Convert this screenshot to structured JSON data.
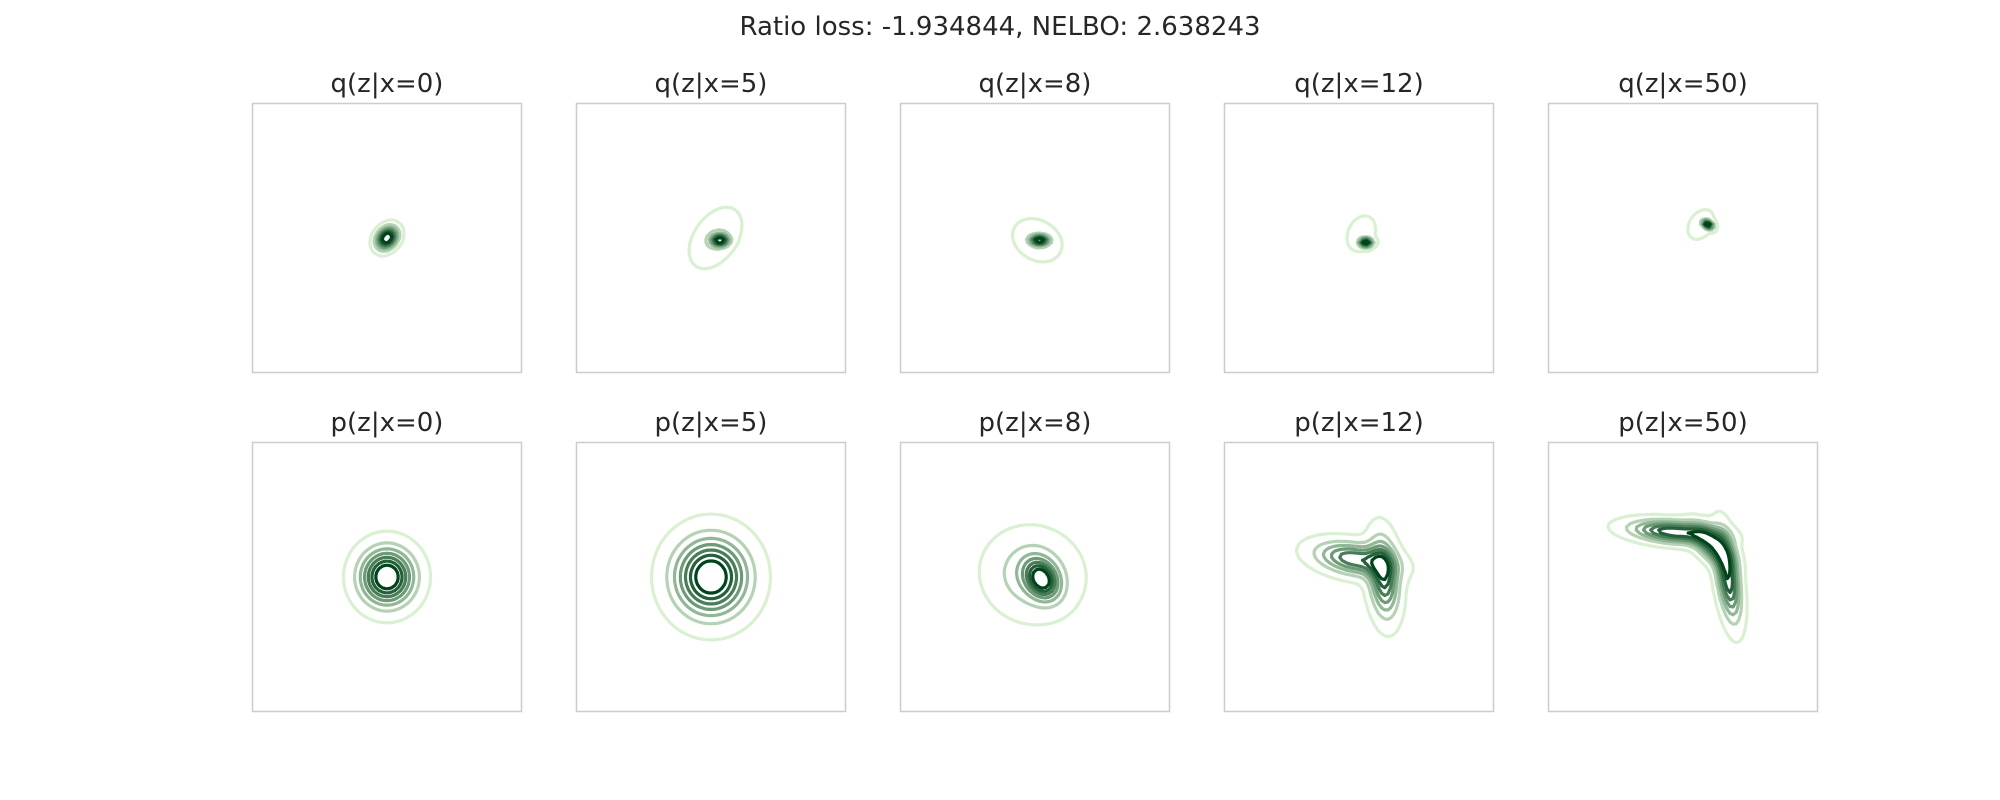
{
  "figure": {
    "title": "Ratio loss: -1.934844, NELBO: 2.638243"
  },
  "colors": {
    "frame": "#cccccc",
    "contour_light": "#d9f0d3",
    "contour_dark": "#00441b",
    "colormap": "Greens"
  },
  "chart_data": [
    {
      "type": "contour",
      "title": "q(z|x=0)",
      "row": "q",
      "x_condition": 0,
      "components": [
        {
          "mean": [
            0.0,
            0.0
          ],
          "std": [
            0.13,
            0.17
          ],
          "rotation_deg": -40,
          "weight": 1.0
        }
      ],
      "levels": 7,
      "grid": false
    },
    {
      "type": "contour",
      "title": "q(z|x=5)",
      "row": "q",
      "x_condition": 5,
      "components": [
        {
          "mean": [
            0.1,
            0.0
          ],
          "std": [
            0.28,
            0.45
          ],
          "rotation_deg": -35,
          "weight": 1.0
        },
        {
          "mean": [
            0.2,
            -0.05
          ],
          "std": [
            0.12,
            0.08
          ],
          "rotation_deg": 0,
          "weight": 0.4
        }
      ],
      "levels": 7,
      "grid": false
    },
    {
      "type": "contour",
      "title": "q(z|x=8)",
      "row": "q",
      "x_condition": 8,
      "components": [
        {
          "mean": [
            0.05,
            -0.05
          ],
          "std": [
            0.42,
            0.32
          ],
          "rotation_deg": -30,
          "weight": 1.0
        },
        {
          "mean": [
            0.1,
            -0.05
          ],
          "std": [
            0.13,
            0.07
          ],
          "rotation_deg": 0,
          "weight": 0.6
        }
      ],
      "levels": 7,
      "grid": false
    },
    {
      "type": "contour",
      "title": "q(z|x=12)",
      "row": "q",
      "x_condition": 12,
      "components": [
        {
          "mean": [
            0.05,
            0.1
          ],
          "std": [
            0.32,
            0.45
          ],
          "rotation_deg": -25,
          "weight": 1.0
        },
        {
          "mean": [
            0.15,
            -0.1
          ],
          "std": [
            0.09,
            0.06
          ],
          "rotation_deg": 0,
          "weight": 0.6
        }
      ],
      "levels": 7,
      "grid": false
    },
    {
      "type": "contour",
      "title": "q(z|x=50)",
      "row": "q",
      "x_condition": 50,
      "components": [
        {
          "mean": [
            0.4,
            0.3
          ],
          "std": [
            0.28,
            0.4
          ],
          "rotation_deg": -35,
          "weight": 1.0
        },
        {
          "mean": [
            0.55,
            0.3
          ],
          "std": [
            0.08,
            0.05
          ],
          "rotation_deg": -30,
          "weight": 0.6
        }
      ],
      "levels": 7,
      "grid": false
    },
    {
      "type": "contour",
      "title": "p(z|x=0)",
      "row": "p",
      "x_condition": 0,
      "components": [
        {
          "mean": [
            0.0,
            0.0
          ],
          "std": [
            0.38,
            0.4
          ],
          "rotation_deg": 0,
          "weight": 1.0
        }
      ],
      "levels": 7,
      "grid": false
    },
    {
      "type": "contour",
      "title": "p(z|x=5)",
      "row": "p",
      "x_condition": 5,
      "components": [
        {
          "mean": [
            0.0,
            0.0
          ],
          "std": [
            0.52,
            0.55
          ],
          "rotation_deg": 0,
          "weight": 1.0
        }
      ],
      "levels": 7,
      "grid": false
    },
    {
      "type": "contour",
      "title": "p(z|x=8)",
      "row": "p",
      "x_condition": 8,
      "components": [
        {
          "mean": [
            -0.05,
            0.05
          ],
          "std": [
            0.6,
            0.55
          ],
          "rotation_deg": -20,
          "weight": 1.0
        },
        {
          "mean": [
            0.15,
            -0.05
          ],
          "std": [
            0.22,
            0.3
          ],
          "rotation_deg": 30,
          "weight": 0.5
        }
      ],
      "levels": 7,
      "grid": false
    },
    {
      "type": "contour",
      "title": "p(z|x=12)",
      "row": "p",
      "x_condition": 12,
      "components": [
        {
          "mean": [
            -0.1,
            0.4
          ],
          "std": [
            0.55,
            0.22
          ],
          "rotation_deg": -10,
          "weight": 1.0
        },
        {
          "mean": [
            0.55,
            0.0
          ],
          "std": [
            0.2,
            0.55
          ],
          "rotation_deg": 5,
          "weight": 1.0
        }
      ],
      "levels": 7,
      "grid": false
    },
    {
      "type": "contour",
      "title": "p(z|x=50)",
      "row": "p",
      "x_condition": 50,
      "components": [
        {
          "mean": [
            -0.2,
            1.0
          ],
          "std": [
            0.6,
            0.15
          ],
          "rotation_deg": -5,
          "weight": 1.0
        },
        {
          "mean": [
            1.0,
            0.0
          ],
          "std": [
            0.15,
            0.6
          ],
          "rotation_deg": 8,
          "weight": 1.0
        },
        {
          "mean": [
            0.65,
            0.7
          ],
          "std": [
            0.35,
            0.18
          ],
          "rotation_deg": -45,
          "weight": 0.6
        }
      ],
      "levels": 7,
      "grid": false
    }
  ]
}
